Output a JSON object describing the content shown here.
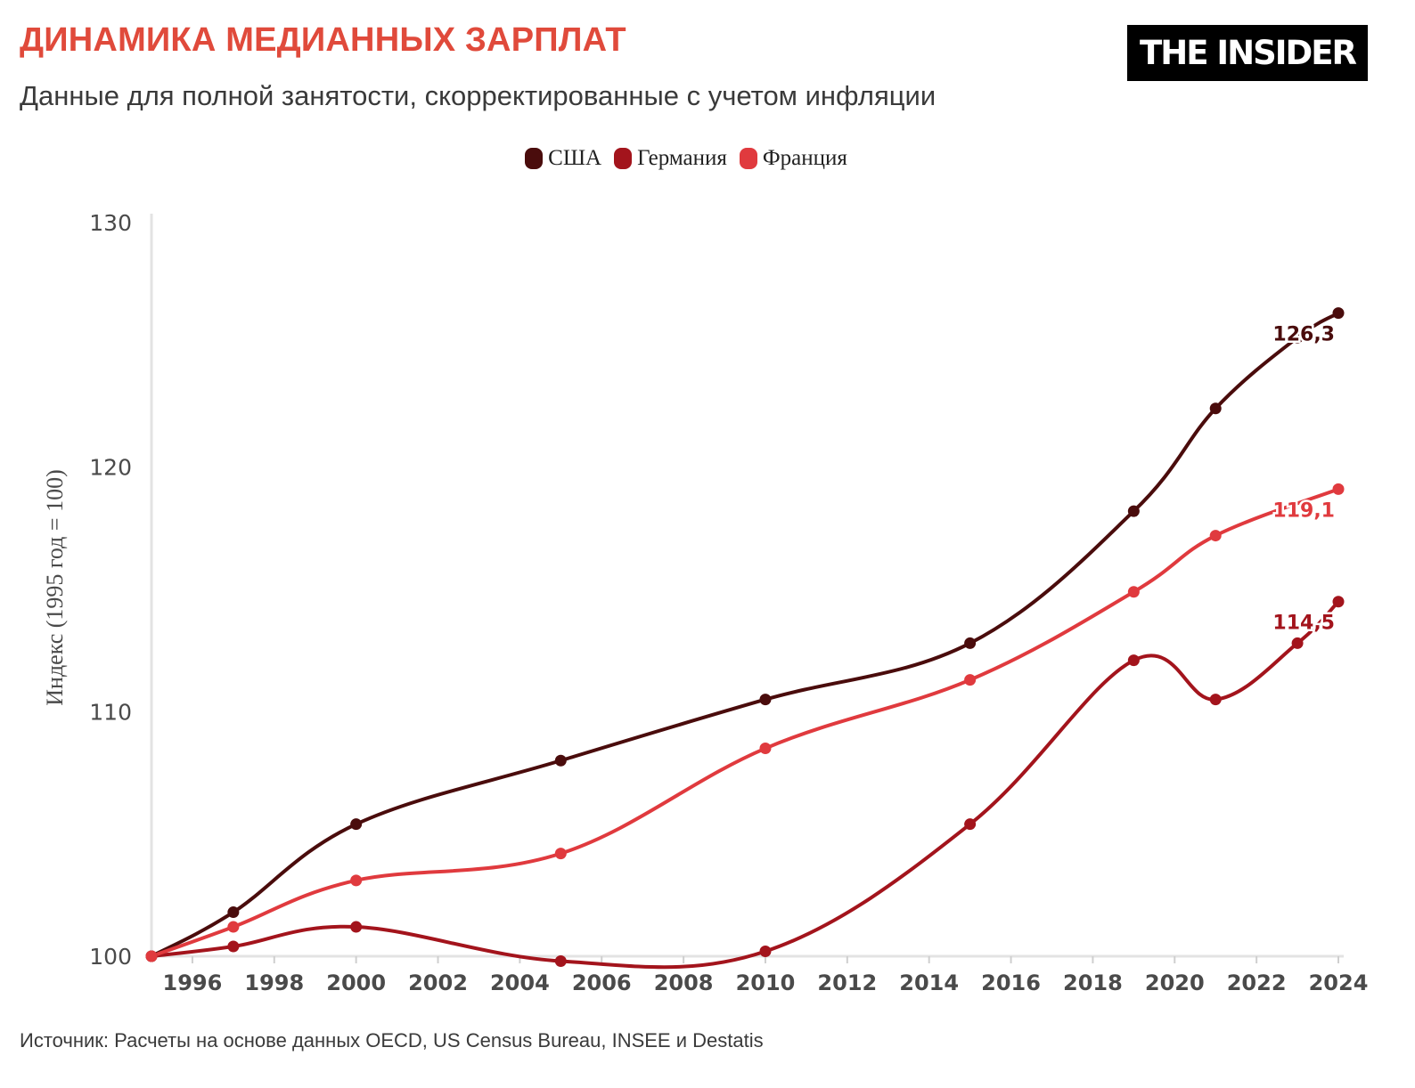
{
  "header": {
    "title": "ДИНАМИКА МЕДИАННЫХ ЗАРПЛАТ",
    "subtitle": "Данные для полной занятости, скорректированные с учетом инфляции",
    "logo": "THE INSIDER"
  },
  "footer": {
    "source": "Источник: Расчеты на основе данных OECD, US Census Bureau, INSEE и Destatis"
  },
  "colors": {
    "title": "#e04a3b",
    "usa": "#4a0c0c",
    "germany": "#a3141c",
    "france": "#e03a3e"
  },
  "chart_data": {
    "type": "line",
    "ylabel": "Индекс (1995 год = 100)",
    "xlabel": "",
    "xlim": [
      1995,
      2024
    ],
    "ylim": [
      100,
      130
    ],
    "y_ticks": [
      "100",
      "110",
      "120",
      "130"
    ],
    "y_tick_values": [
      100,
      110,
      120,
      130
    ],
    "x_ticks": [
      "1996",
      "1998",
      "2000",
      "2002",
      "2004",
      "2006",
      "2008",
      "2010",
      "2012",
      "2014",
      "2016",
      "2018",
      "2020",
      "2022",
      "2024"
    ],
    "x_tick_values": [
      1996,
      1998,
      2000,
      2002,
      2004,
      2006,
      2008,
      2010,
      2012,
      2014,
      2016,
      2018,
      2020,
      2022,
      2024
    ],
    "legend_position": "top-center",
    "grid": false,
    "series": [
      {
        "name": "США",
        "color": "#4a0c0c",
        "end_label": "126,3",
        "x": [
          1995,
          1997,
          2000,
          2005,
          2010,
          2015,
          2019,
          2021,
          2023,
          2024
        ],
        "values": [
          100,
          101.8,
          105.4,
          108.0,
          110.5,
          112.8,
          118.2,
          122.4,
          125.3,
          126.3
        ]
      },
      {
        "name": "Германия",
        "color": "#a3141c",
        "end_label": "114,5",
        "x": [
          1995,
          1997,
          2000,
          2005,
          2010,
          2015,
          2019,
          2021,
          2023,
          2024
        ],
        "values": [
          100,
          100.4,
          101.2,
          99.8,
          100.2,
          105.4,
          112.1,
          110.5,
          112.8,
          114.5
        ]
      },
      {
        "name": "Франция",
        "color": "#e03a3e",
        "end_label": "119,1",
        "x": [
          1995,
          1997,
          2000,
          2005,
          2010,
          2015,
          2019,
          2021,
          2024
        ],
        "values": [
          100,
          101.2,
          103.1,
          104.2,
          108.5,
          111.3,
          114.9,
          117.2,
          119.1
        ]
      }
    ]
  }
}
